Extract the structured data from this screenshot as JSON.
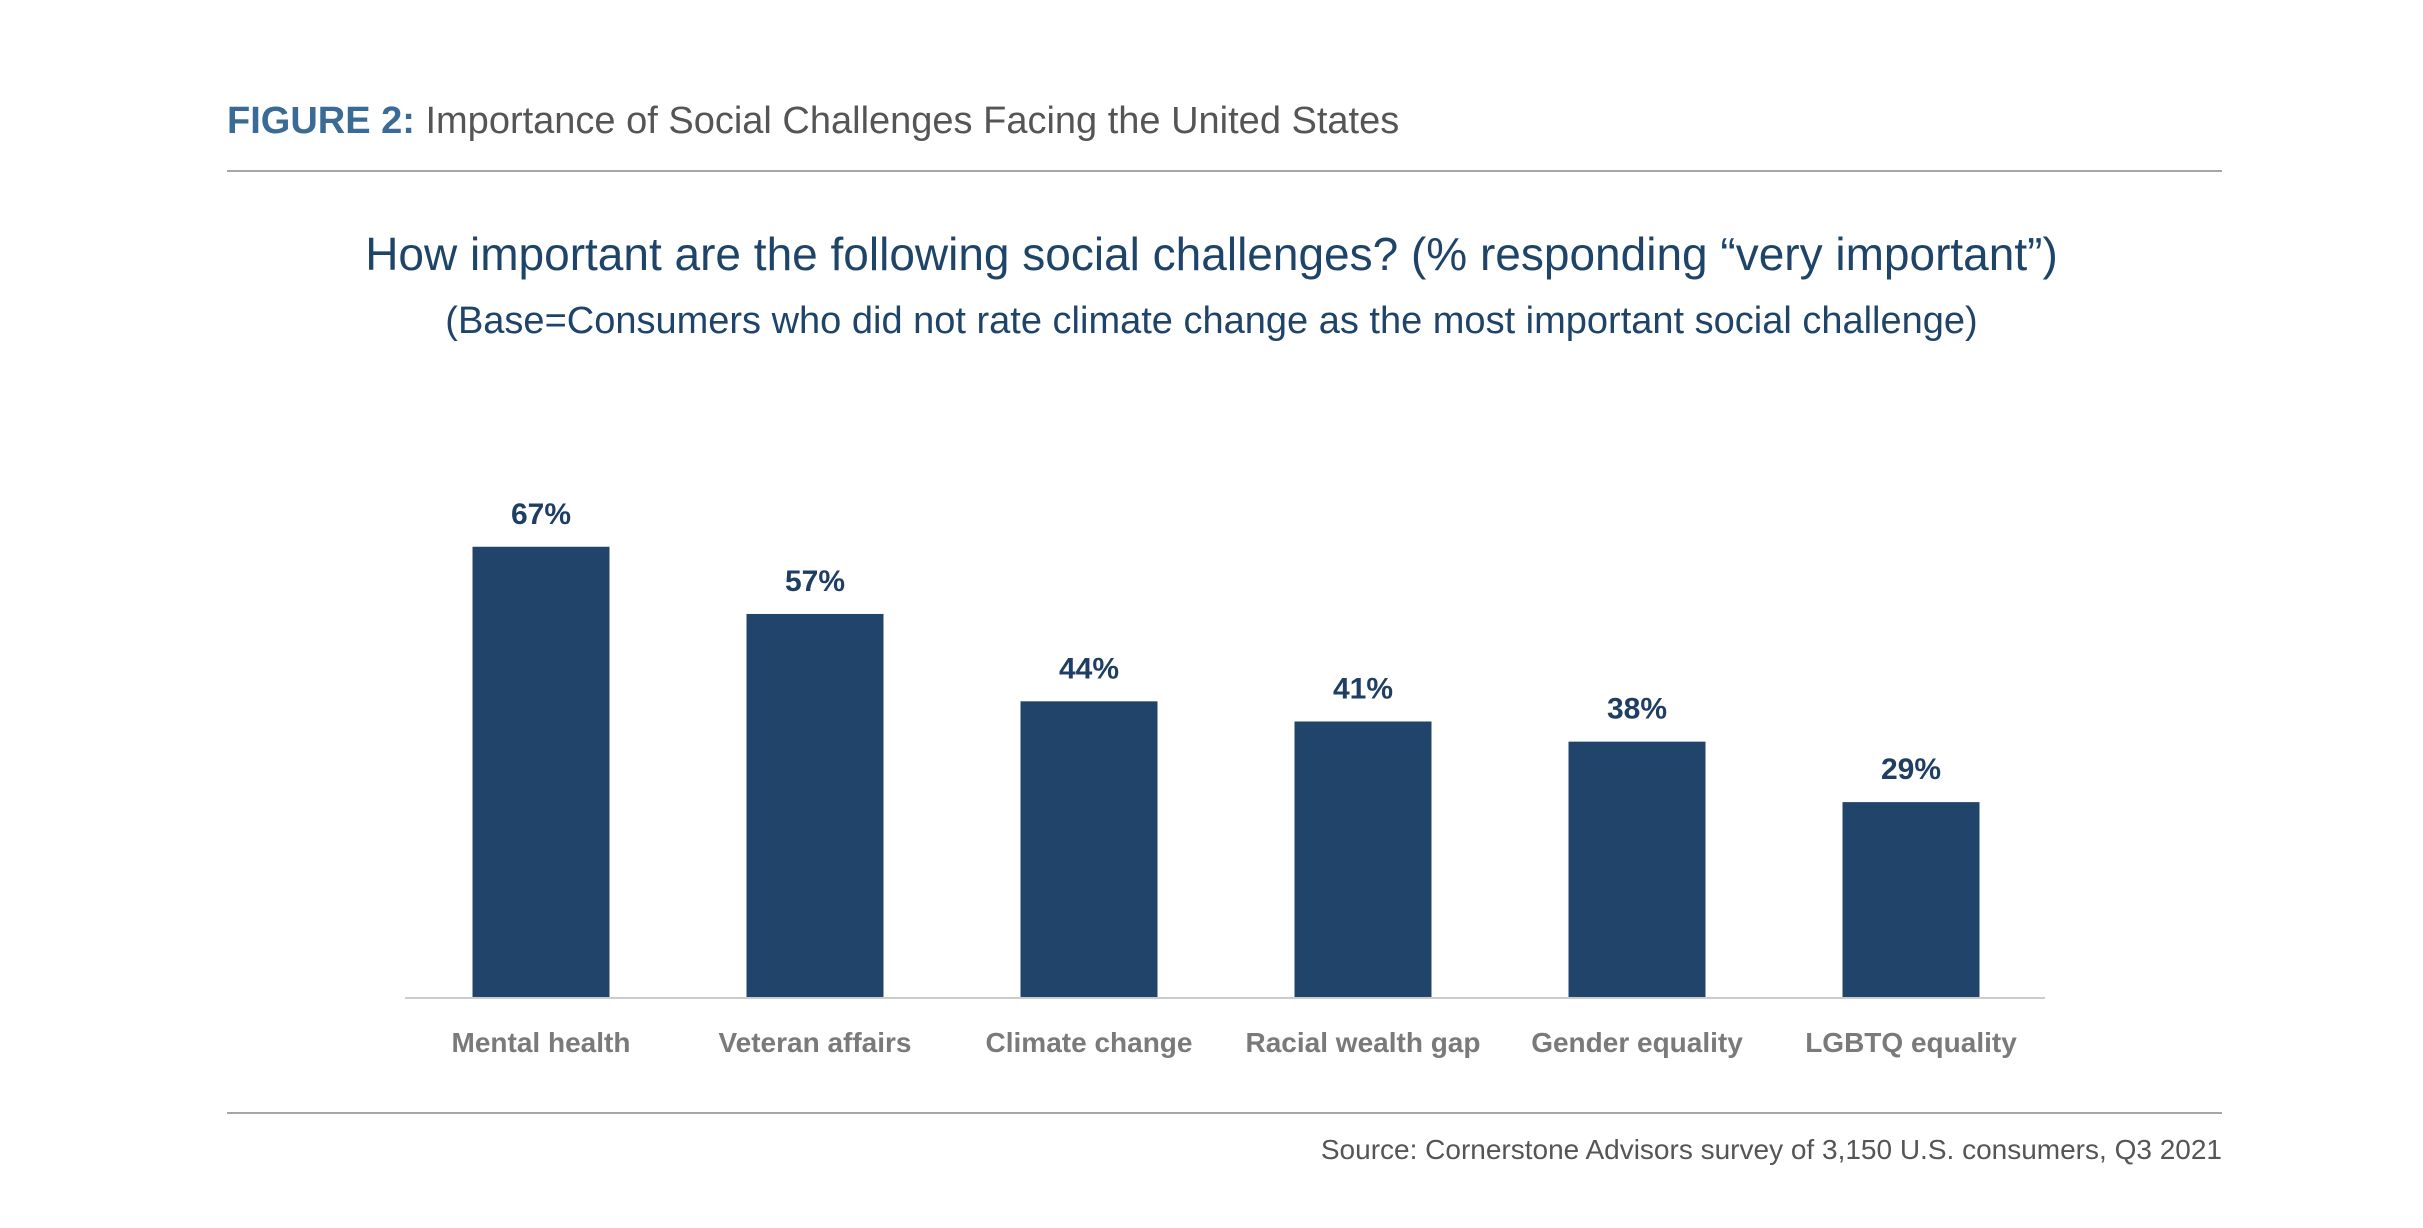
{
  "figure": {
    "label": "FIGURE 2:",
    "title": "Importance of Social Challenges Facing the United States"
  },
  "chart_data": {
    "type": "bar",
    "title": "How important are the following social challenges? (% responding “very important”)",
    "subtitle": "(Base=Consumers who did not rate climate change as the most important social challenge)",
    "categories": [
      "Mental health",
      "Veteran affairs",
      "Climate change",
      "Racial wealth gap",
      "Gender equality",
      "LGBTQ equality"
    ],
    "values": [
      67,
      57,
      44,
      41,
      38,
      29
    ],
    "value_labels": [
      "67%",
      "57%",
      "44%",
      "41%",
      "38%",
      "29%"
    ],
    "xlabel": "",
    "ylabel": "",
    "ylim": [
      0,
      100
    ],
    "grid": false,
    "legend": "none",
    "bar_color": "#21446b",
    "label_color": "#1f3e63",
    "category_color": "#7a7a7a"
  },
  "source": "Source: Cornerstone Advisors survey of 3,150 U.S. consumers, Q3 2021"
}
